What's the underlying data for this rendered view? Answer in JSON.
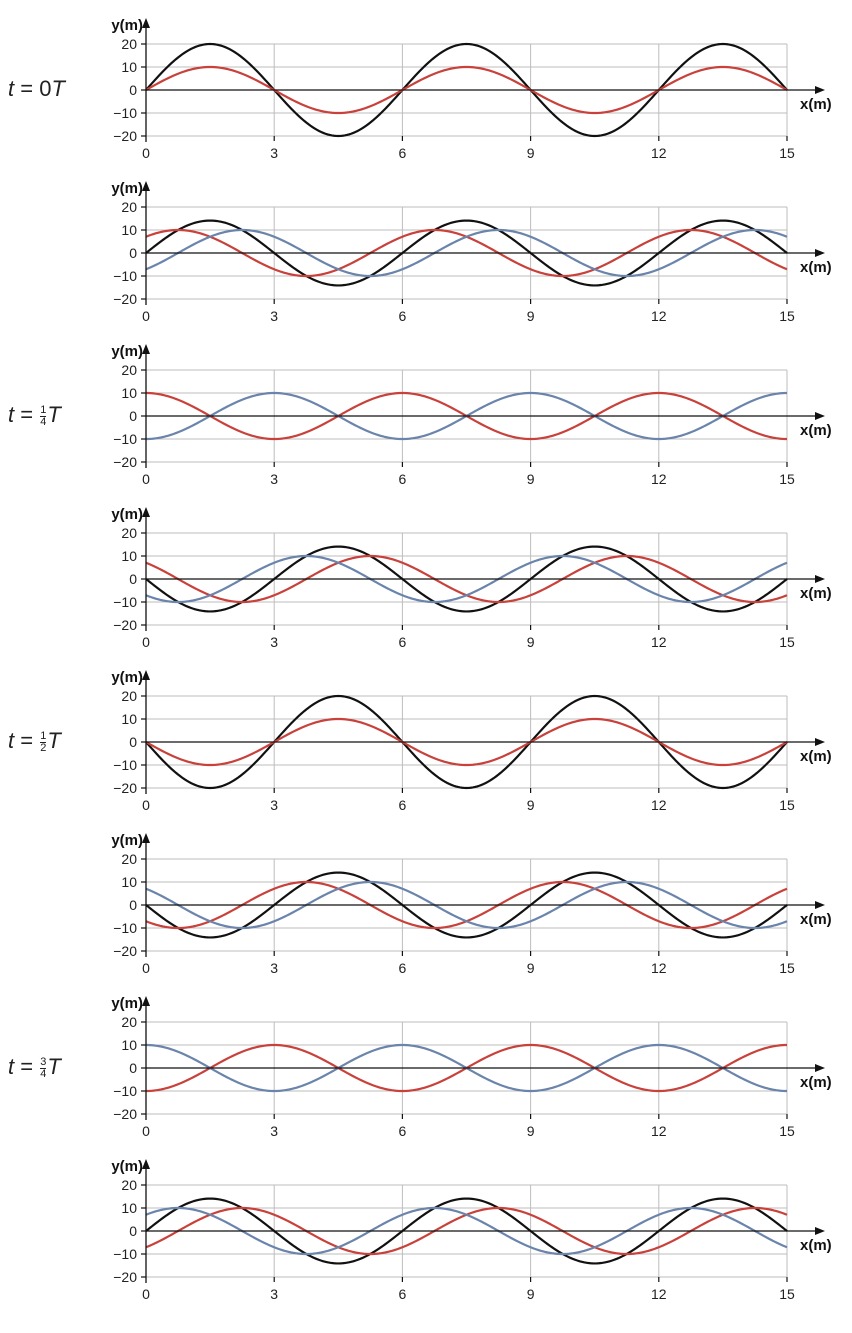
{
  "colors": {
    "black": "#111111",
    "red": "#c8413b",
    "blue": "#6a84ab",
    "grid": "#bdbdbd",
    "axis": "#111111"
  },
  "axis_text": {
    "y_label": "y(m)",
    "x_label": "x(m)"
  },
  "time_labels": [
    {
      "panel": 0,
      "t": "t",
      "eq": "=",
      "num": "0",
      "frac_num": "",
      "frac_den": "",
      "T": "T"
    },
    {
      "panel": 2,
      "t": "t",
      "eq": "=",
      "num": "",
      "frac_num": "1",
      "frac_den": "4",
      "T": "T"
    },
    {
      "panel": 4,
      "t": "t",
      "eq": "=",
      "num": "",
      "frac_num": "1",
      "frac_den": "2",
      "T": "T"
    },
    {
      "panel": 6,
      "t": "t",
      "eq": "=",
      "num": "",
      "frac_num": "3",
      "frac_den": "4",
      "T": "T"
    }
  ],
  "chart_data": [
    {
      "type": "line",
      "xlabel": "x(m)",
      "ylabel": "y(m)",
      "xlim": [
        0,
        15
      ],
      "ylim": [
        -20,
        20
      ],
      "x_ticks": [
        "0",
        "3",
        "6",
        "9",
        "12",
        "15"
      ],
      "y_ticks": [
        "20",
        "10",
        "0",
        "−10",
        "−20"
      ],
      "grid": true,
      "series": [
        {
          "color": "#111111",
          "amplitude": 20,
          "phase_deg": 0
        },
        {
          "color": "#c8413b",
          "amplitude": 10,
          "phase_deg": 0
        }
      ]
    },
    {
      "type": "line",
      "xlabel": "x(m)",
      "ylabel": "y(m)",
      "xlim": [
        0,
        15
      ],
      "ylim": [
        -20,
        20
      ],
      "x_ticks": [
        "0",
        "3",
        "6",
        "9",
        "12",
        "15"
      ],
      "y_ticks": [
        "20",
        "10",
        "0",
        "−10",
        "−20"
      ],
      "grid": true,
      "series": [
        {
          "color": "#111111",
          "amplitude": 14.1,
          "phase_deg": 0
        },
        {
          "color": "#c8413b",
          "amplitude": 10,
          "phase_deg": 45
        },
        {
          "color": "#6a84ab",
          "amplitude": 10,
          "phase_deg": -45
        }
      ]
    },
    {
      "type": "line",
      "xlabel": "x(m)",
      "ylabel": "y(m)",
      "xlim": [
        0,
        15
      ],
      "ylim": [
        -20,
        20
      ],
      "x_ticks": [
        "0",
        "3",
        "6",
        "9",
        "12",
        "15"
      ],
      "y_ticks": [
        "20",
        "10",
        "0",
        "−10",
        "−20"
      ],
      "grid": true,
      "series": [
        {
          "color": "#c8413b",
          "amplitude": 10,
          "phase_deg": 90
        },
        {
          "color": "#6a84ab",
          "amplitude": 10,
          "phase_deg": -90
        }
      ]
    },
    {
      "type": "line",
      "xlabel": "x(m)",
      "ylabel": "y(m)",
      "xlim": [
        0,
        15
      ],
      "ylim": [
        -20,
        20
      ],
      "x_ticks": [
        "0",
        "3",
        "6",
        "9",
        "12",
        "15"
      ],
      "y_ticks": [
        "20",
        "10",
        "0",
        "−10",
        "−20"
      ],
      "grid": true,
      "series": [
        {
          "color": "#111111",
          "amplitude": 14.1,
          "phase_deg": 180
        },
        {
          "color": "#c8413b",
          "amplitude": 10,
          "phase_deg": 135
        },
        {
          "color": "#6a84ab",
          "amplitude": 10,
          "phase_deg": -135
        }
      ]
    },
    {
      "type": "line",
      "xlabel": "x(m)",
      "ylabel": "y(m)",
      "xlim": [
        0,
        15
      ],
      "ylim": [
        -20,
        20
      ],
      "x_ticks": [
        "0",
        "3",
        "6",
        "9",
        "12",
        "15"
      ],
      "y_ticks": [
        "20",
        "10",
        "0",
        "−10",
        "−20"
      ],
      "grid": true,
      "series": [
        {
          "color": "#111111",
          "amplitude": 20,
          "phase_deg": 180
        },
        {
          "color": "#c8413b",
          "amplitude": 10,
          "phase_deg": 180
        }
      ]
    },
    {
      "type": "line",
      "xlabel": "x(m)",
      "ylabel": "y(m)",
      "xlim": [
        0,
        15
      ],
      "ylim": [
        -20,
        20
      ],
      "x_ticks": [
        "0",
        "3",
        "6",
        "9",
        "12",
        "15"
      ],
      "y_ticks": [
        "20",
        "10",
        "0",
        "−10",
        "−20"
      ],
      "grid": true,
      "series": [
        {
          "color": "#111111",
          "amplitude": 14.1,
          "phase_deg": 180
        },
        {
          "color": "#c8413b",
          "amplitude": 10,
          "phase_deg": -135
        },
        {
          "color": "#6a84ab",
          "amplitude": 10,
          "phase_deg": 135
        }
      ]
    },
    {
      "type": "line",
      "xlabel": "x(m)",
      "ylabel": "y(m)",
      "xlim": [
        0,
        15
      ],
      "ylim": [
        -20,
        20
      ],
      "x_ticks": [
        "0",
        "3",
        "6",
        "9",
        "12",
        "15"
      ],
      "y_ticks": [
        "20",
        "10",
        "0",
        "−10",
        "−20"
      ],
      "grid": true,
      "series": [
        {
          "color": "#c8413b",
          "amplitude": 10,
          "phase_deg": -90
        },
        {
          "color": "#6a84ab",
          "amplitude": 10,
          "phase_deg": 90
        }
      ]
    },
    {
      "type": "line",
      "xlabel": "x(m)",
      "ylabel": "y(m)",
      "xlim": [
        0,
        15
      ],
      "ylim": [
        -20,
        20
      ],
      "x_ticks": [
        "0",
        "3",
        "6",
        "9",
        "12",
        "15"
      ],
      "y_ticks": [
        "20",
        "10",
        "0",
        "−10",
        "−20"
      ],
      "grid": true,
      "series": [
        {
          "color": "#111111",
          "amplitude": 14.1,
          "phase_deg": 0
        },
        {
          "color": "#c8413b",
          "amplitude": 10,
          "phase_deg": -45
        },
        {
          "color": "#6a84ab",
          "amplitude": 10,
          "phase_deg": 45
        }
      ]
    }
  ]
}
